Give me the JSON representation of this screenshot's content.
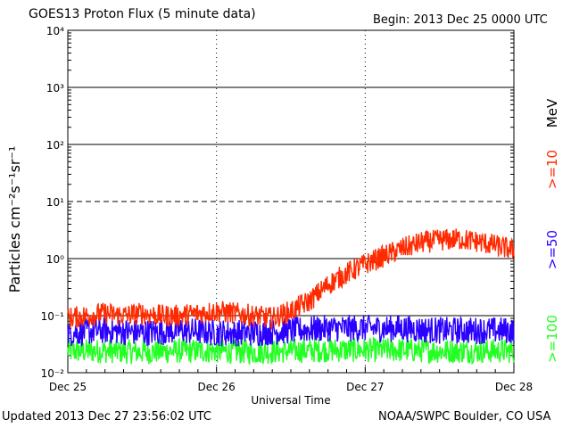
{
  "chart_data": {
    "type": "line",
    "title": "GOES13 Proton Flux (5 minute data)",
    "begin_label": "Begin: 2013 Dec 25 0000 UTC",
    "xlabel": "Universal Time",
    "ylabel": "Particles cm⁻²s⁻¹sr⁻¹",
    "y_scale": "log",
    "ylim": [
      0.01,
      10000
    ],
    "y_ticks": [
      "10⁻²",
      "10⁻¹",
      "10⁰",
      "10¹",
      "10²",
      "10³",
      "10⁴"
    ],
    "x_ticks": [
      "Dec 25",
      "Dec 26",
      "Dec 27",
      "Dec 28"
    ],
    "unit_label": "MeV",
    "grid": true,
    "legend_position": "right",
    "series": [
      {
        "name": ">=10",
        "color": "#ff2a00",
        "hours": [
          0,
          3,
          6,
          9,
          12,
          15,
          18,
          21,
          24,
          27,
          30,
          33,
          36,
          39,
          42,
          45,
          48,
          51,
          54,
          57,
          60,
          63,
          66,
          69,
          72
        ],
        "values": [
          0.09,
          0.1,
          0.11,
          0.1,
          0.11,
          0.1,
          0.1,
          0.11,
          0.12,
          0.11,
          0.1,
          0.09,
          0.12,
          0.18,
          0.35,
          0.55,
          0.8,
          1.1,
          1.5,
          1.9,
          2.1,
          2.2,
          2.0,
          1.7,
          1.4
        ]
      },
      {
        "name": ">=50",
        "color": "#2a00ff",
        "hours": [
          0,
          6,
          12,
          18,
          24,
          30,
          36,
          42,
          48,
          54,
          60,
          66,
          72
        ],
        "values": [
          0.05,
          0.055,
          0.05,
          0.055,
          0.05,
          0.05,
          0.055,
          0.06,
          0.06,
          0.06,
          0.055,
          0.055,
          0.055
        ]
      },
      {
        "name": ">=100",
        "color": "#22ff22",
        "hours": [
          0,
          6,
          12,
          18,
          24,
          30,
          36,
          42,
          48,
          54,
          60,
          66,
          72
        ],
        "values": [
          0.024,
          0.024,
          0.023,
          0.024,
          0.024,
          0.023,
          0.024,
          0.025,
          0.025,
          0.025,
          0.024,
          0.024,
          0.024
        ]
      }
    ]
  },
  "footer": {
    "updated": "Updated 2013 Dec 27 23:56:02 UTC",
    "source": "NOAA/SWPC Boulder, CO USA"
  }
}
